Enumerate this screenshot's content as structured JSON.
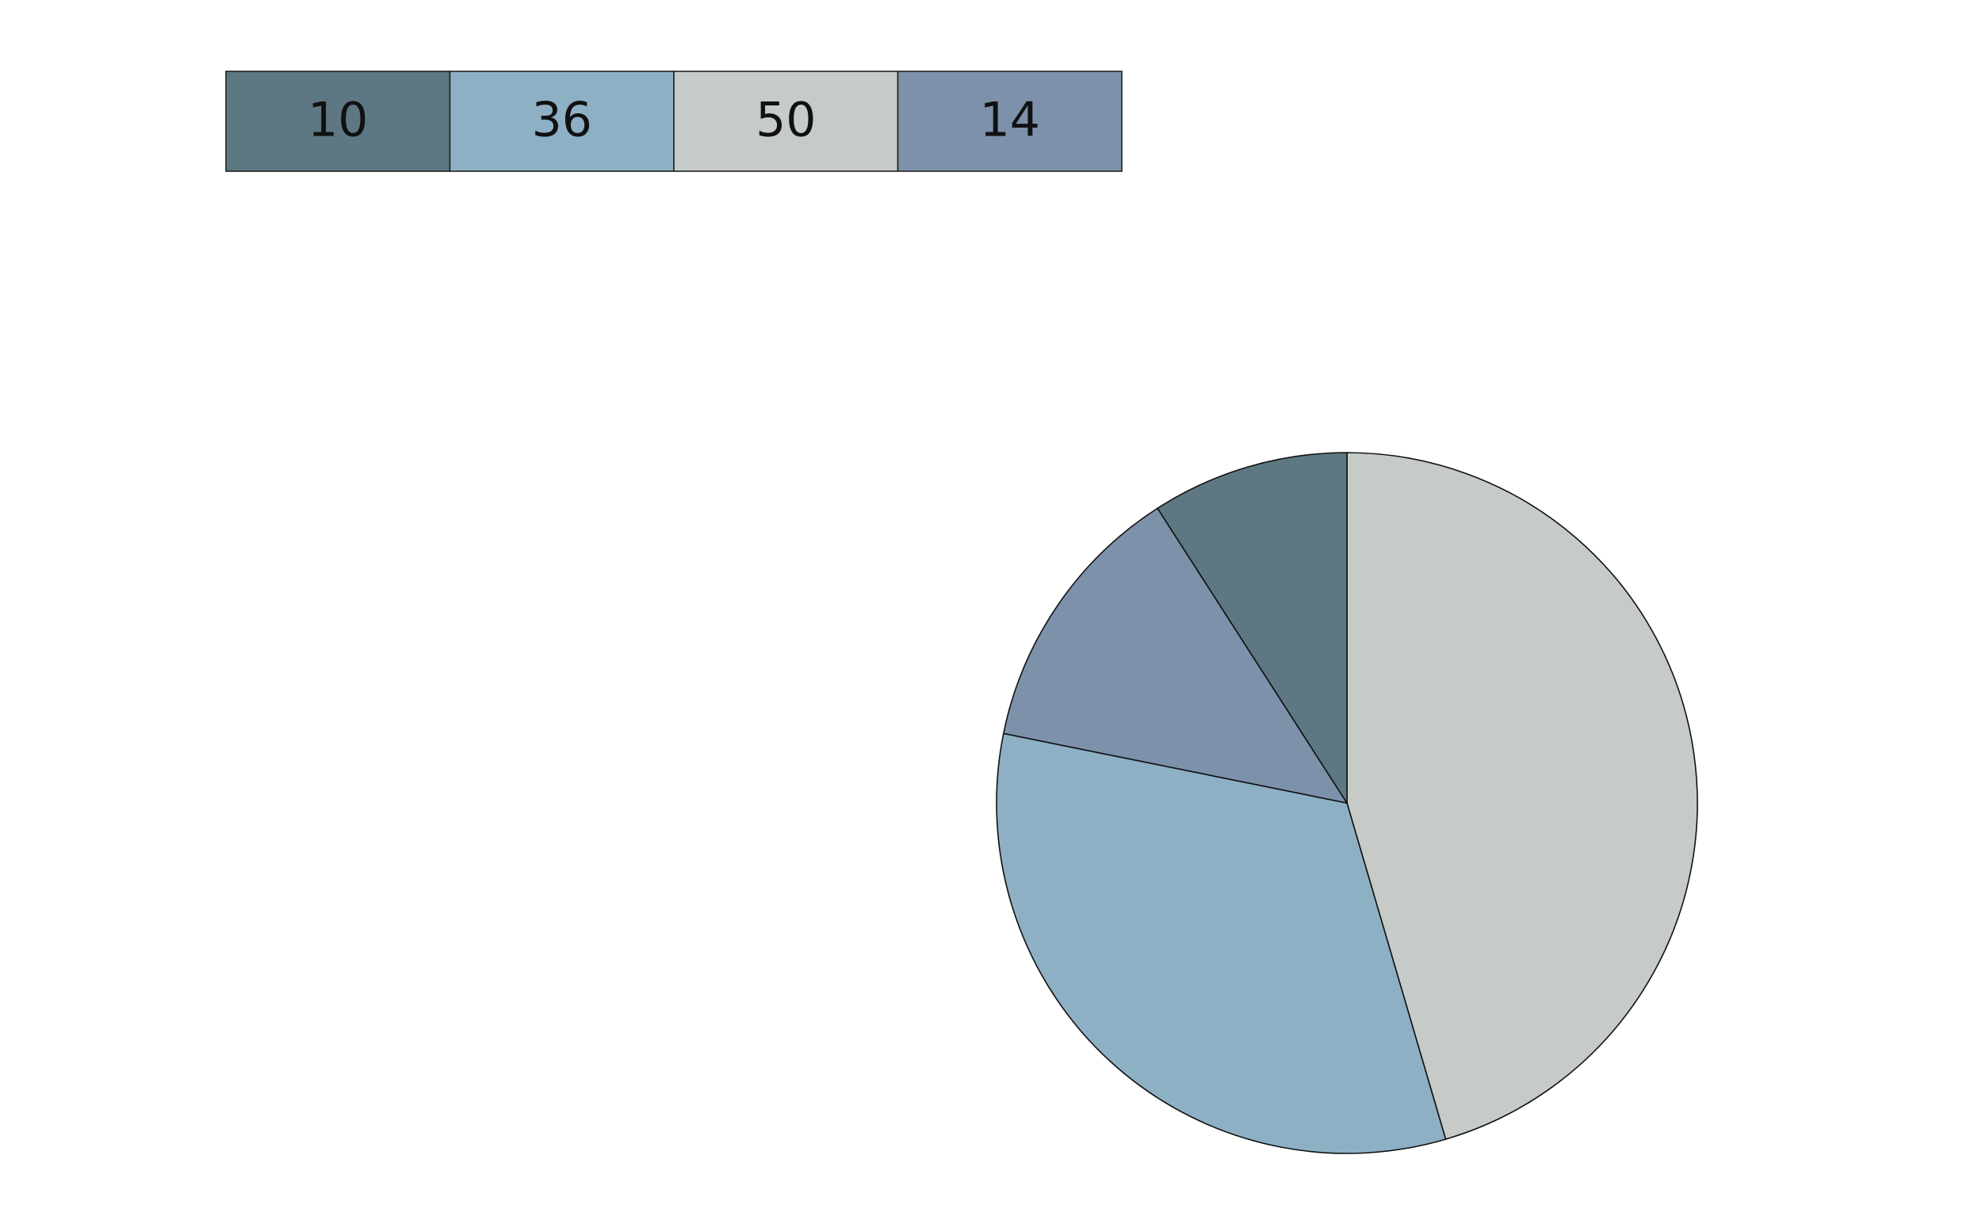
{
  "chart_data": {
    "type": "pie",
    "values": [
      50,
      36,
      14,
      10
    ],
    "colors": [
      "#c6cbc7",
      "#8eb0c5",
      "#7d91aa",
      "#5d7882"
    ]
  }
}
